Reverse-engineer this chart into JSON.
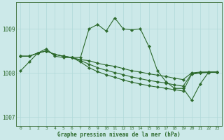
{
  "title": "Graphe pression niveau de la mer (hPa)",
  "background_color": "#cce9e9",
  "plot_background": "#cce9e9",
  "grid_color": "#b0d8d8",
  "line_color": "#2d6a2d",
  "spine_color": "#4a7a4a",
  "xlim": [
    -0.5,
    23.5
  ],
  "ylim": [
    1006.8,
    1009.6
  ],
  "yticks": [
    1007,
    1008,
    1009
  ],
  "xticks": [
    0,
    1,
    2,
    3,
    4,
    5,
    6,
    7,
    8,
    9,
    10,
    11,
    12,
    13,
    14,
    15,
    16,
    17,
    18,
    19,
    20,
    21,
    22,
    23
  ],
  "series1": [
    1008.05,
    1008.25,
    1008.45,
    1008.55,
    1008.38,
    1008.35,
    1008.35,
    1008.35,
    1009.0,
    1009.1,
    1008.95,
    1009.25,
    1009.0,
    1008.98,
    1009.0,
    1008.6,
    1008.05,
    1007.8,
    1007.65,
    1007.65,
    1007.38,
    1007.75,
    1008.02,
    1008.02
  ],
  "series2": [
    1008.38,
    1008.38,
    1008.45,
    1008.5,
    1008.42,
    1008.38,
    1008.35,
    1008.3,
    1008.28,
    1008.22,
    1008.18,
    1008.15,
    1008.1,
    1008.05,
    1008.02,
    1007.98,
    1007.95,
    1007.92,
    1007.88,
    1007.85,
    1008.0,
    1008.02,
    1008.02,
    1008.02
  ],
  "series3": [
    1008.38,
    1008.38,
    1008.45,
    1008.5,
    1008.42,
    1008.38,
    1008.35,
    1008.28,
    1008.2,
    1008.12,
    1008.06,
    1008.01,
    1007.96,
    1007.91,
    1007.87,
    1007.83,
    1007.8,
    1007.77,
    1007.73,
    1007.7,
    1007.98,
    1008.01,
    1008.02,
    1008.02
  ],
  "series4": [
    1008.38,
    1008.38,
    1008.45,
    1008.5,
    1008.42,
    1008.38,
    1008.35,
    1008.25,
    1008.12,
    1008.03,
    1007.96,
    1007.9,
    1007.84,
    1007.79,
    1007.75,
    1007.71,
    1007.68,
    1007.65,
    1007.62,
    1007.59,
    1007.97,
    1008.0,
    1008.01,
    1008.02
  ]
}
